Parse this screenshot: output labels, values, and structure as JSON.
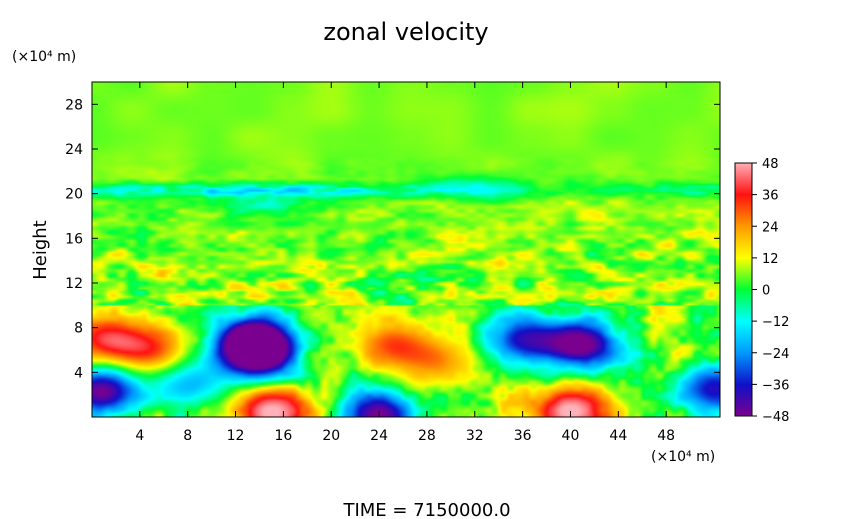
{
  "chart_data": {
    "type": "heatmap",
    "title": "zonal velocity",
    "xlabel": "",
    "xunit": "(×10⁴ m)",
    "ylabel": "Height",
    "yunit": "(×10⁴ m)",
    "xlim": [
      0,
      52.5
    ],
    "ylim": [
      0,
      30
    ],
    "xticks": [
      "4",
      "8",
      "12",
      "16",
      "20",
      "24",
      "28",
      "32",
      "36",
      "40",
      "44",
      "48"
    ],
    "yticks": [
      "4",
      "8",
      "12",
      "16",
      "20",
      "24",
      "28"
    ],
    "colorbar": {
      "range": [
        -48,
        48
      ],
      "ticks": [
        "48",
        "36",
        "24",
        "12",
        "0",
        "−12",
        "−24",
        "−36",
        "−48"
      ]
    },
    "features": [
      {
        "x": 1,
        "y": 7,
        "value": 34
      },
      {
        "x": 5,
        "y": 6,
        "value": 30
      },
      {
        "x": 14,
        "y": 5.5,
        "value": -44
      },
      {
        "x": 13.5,
        "y": 7,
        "value": -48
      },
      {
        "x": 8,
        "y": 3,
        "value": -20
      },
      {
        "x": 25,
        "y": 6.5,
        "value": 28
      },
      {
        "x": 29,
        "y": 5,
        "value": 22
      },
      {
        "x": 41,
        "y": 6.5,
        "value": -48
      },
      {
        "x": 36,
        "y": 7,
        "value": -34
      },
      {
        "x": 15,
        "y": 0.5,
        "value": 48
      },
      {
        "x": 40,
        "y": 0.5,
        "value": 48
      },
      {
        "x": 24,
        "y": 0.2,
        "value": -46
      },
      {
        "x": 0.8,
        "y": 2.3,
        "value": -46
      },
      {
        "x": 52,
        "y": 2.5,
        "value": -36
      },
      {
        "x": 32,
        "y": 20.5,
        "value": -26
      },
      {
        "x": 14,
        "y": 19,
        "value": -16
      },
      {
        "x": 6,
        "y": 13.5,
        "value": 14
      },
      {
        "x": 40,
        "y": 18.5,
        "value": 14
      }
    ],
    "footer": "TIME  =  7150000.0"
  },
  "colors": {
    "colormap": [
      "#7a0090",
      "#1010c8",
      "#0099ff",
      "#00ffff",
      "#00ff33",
      "#ffff00",
      "#ff9900",
      "#ff1111",
      "#ffb0b8"
    ]
  }
}
